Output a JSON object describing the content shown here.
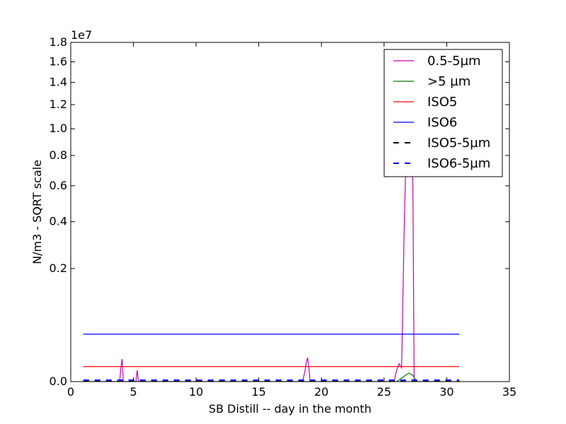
{
  "chart_data": {
    "type": "line",
    "title": "",
    "xlabel": "SB Distill -- day in the month",
    "ylabel": "N/m3 - SQRT scale",
    "y_scale": "sqrt",
    "y_multiplier_label": "1e7",
    "xlim": [
      0,
      35
    ],
    "ylim": [
      0.0,
      1.8
    ],
    "x_ticks": [
      0,
      5,
      10,
      15,
      20,
      25,
      30,
      35
    ],
    "x_tick_labels": [
      "0",
      "5",
      "10",
      "15",
      "20",
      "25",
      "30",
      "35"
    ],
    "y_ticks": [
      0.0,
      0.2,
      0.4,
      0.6,
      0.8,
      1.0,
      1.2,
      1.4,
      1.6,
      1.8
    ],
    "y_tick_labels": [
      "0.0",
      "0.2",
      "0.4",
      "0.6",
      "0.8",
      "1.0",
      "1.2",
      "1.4",
      "1.6",
      "1.8"
    ],
    "grid": false,
    "legend_position": "top-right",
    "series": [
      {
        "name": "0.5-5µm",
        "color": "#bf00bf",
        "dash": "solid",
        "x": [
          1.0,
          3.9,
          4.0,
          4.1,
          4.2,
          5.2,
          5.3,
          5.4,
          18.5,
          18.7,
          18.8,
          18.9,
          19.0,
          19.1,
          25.8,
          26.0,
          26.2,
          26.4,
          26.6,
          26.7,
          26.8,
          27.0,
          27.2,
          27.3,
          27.4,
          28.0,
          31.0
        ],
        "y": [
          0.0,
          0.0,
          0.003,
          0.008,
          0.0,
          0.0,
          0.002,
          0.0,
          0.0,
          0.002,
          0.006,
          0.009,
          0.003,
          0.0,
          0.0,
          0.002,
          0.005,
          0.003,
          0.35,
          0.62,
          0.95,
          1.4,
          0.95,
          0.6,
          0.0,
          0.0,
          0.0
        ]
      },
      {
        "name": ">5 µm",
        "color": "#008000",
        "dash": "solid",
        "x": [
          1.0,
          26.0,
          26.5,
          26.8,
          27.0,
          27.3,
          27.6,
          31.0
        ],
        "y": [
          0.0,
          0.0,
          0.0003,
          0.0008,
          0.0011,
          0.0006,
          0.0,
          0.0
        ]
      },
      {
        "name": "ISO5",
        "color": "#ff0000",
        "dash": "solid",
        "x": [
          1.0,
          31.0
        ],
        "y": [
          0.00353,
          0.00353
        ]
      },
      {
        "name": "ISO6",
        "color": "#0000ff",
        "dash": "solid",
        "x": [
          1.0,
          31.0
        ],
        "y": [
          0.0352,
          0.0352
        ]
      },
      {
        "name": "ISO5-5µm",
        "color": "#000000",
        "dash": "dashed",
        "x": [
          1.0,
          31.0
        ],
        "y": [
          2.9e-06,
          2.9e-06
        ]
      },
      {
        "name": "ISO6-5µm",
        "color": "#0000ff",
        "dash": "dashed",
        "x": [
          1.0,
          31.0
        ],
        "y": [
          2.93e-05,
          2.93e-05
        ]
      }
    ]
  }
}
